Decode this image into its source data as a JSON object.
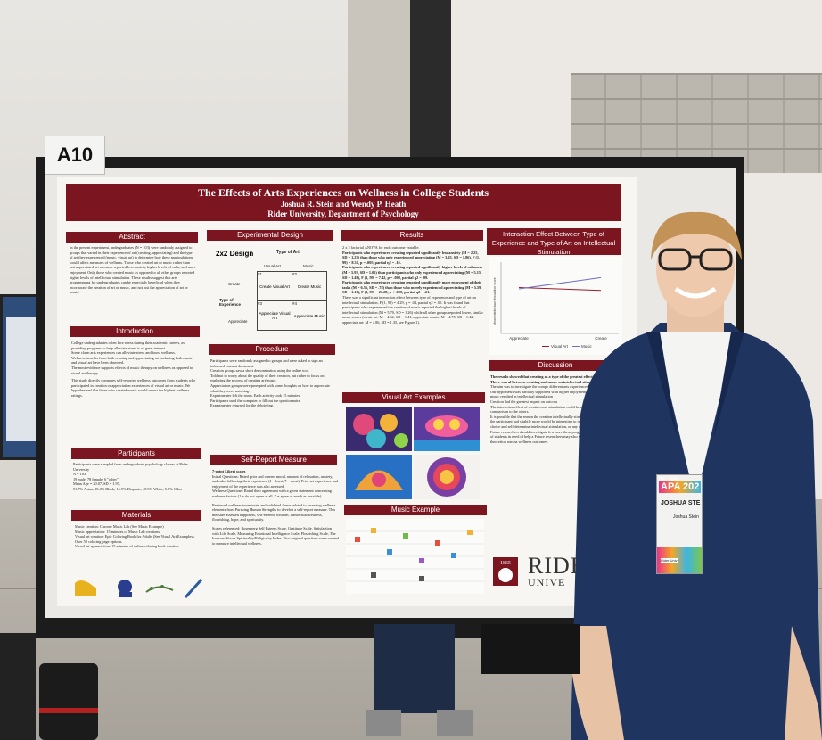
{
  "sign": {
    "label": "A10"
  },
  "poster": {
    "title": "The Effects of Arts Experiences on Wellness in College Students",
    "authors": "Joshua R. Stein and Wendy P. Heath",
    "affiliation": "Rider University, Department of Psychology",
    "abstract": {
      "heading": "Abstract",
      "body": "In the present experiment, undergraduates (N = 103) were randomly assigned to groups that varied in their experience of art (creating, appreciating) and the type of art they experienced (music, visual art) to determine how these manipulations would affect measures of wellness. Those who created art or music rather than just appreciated art or music reported less anxiety, higher levels of calm, and more enjoyment. Only those who created music as opposed to all other groups reported higher levels of intellectual stimulation. These results suggest that arts programming for undergraduates can be especially beneficial when they incorporate the creation of art or music, and not just the appreciation of art or music."
    },
    "introduction": {
      "heading": "Introduction",
      "bullets": [
        "College undergraduates often face stress during their academic careers, as providing programs to help alleviate stress is of great interest.",
        "Some claim arts experiences can alleviate stress and boost wellness.",
        "Wellness benefits from both creating and appreciating art including both music and visual art have been observed.",
        "The most evidence supports effects of music therapy on wellness as opposed to visual art therapy."
      ],
      "closing": "This study directly compares self-reported wellness outcomes from students who participated in creation or appreciation experiences of visual art or music. We hypothesized that those who created music would report the highest wellness ratings."
    },
    "participants": {
      "heading": "Participants",
      "body": "Participants were sampled from undergraduate psychology classes at Rider University",
      "bullets": [
        "N = 103",
        "19 male, 78 female, 6 \"other\"",
        "Mean Age = 20.07, SD = 1.97,",
        "51.7% Asian, 18.4% Black, 16.5% Hispanic, 48.5% White, 5.8% Other"
      ]
    },
    "materials": {
      "heading": "Materials",
      "bullets": [
        "Music creation: Chrome Music Lab (See Music Example)",
        "Music appreciation: 15 minutes of Music Lab creations",
        "Visual art creation: Epic Coloring Book for Adults (See Visual Art Examples). Over 50 coloring page options.",
        "Visual art appreciation: 15 minutes of online coloring book creation"
      ]
    },
    "design": {
      "heading": "Experimental Design",
      "label": "2x2 Design",
      "type_of_art": "Type of Art",
      "col_visual": "Visual Art",
      "col_music": "Music",
      "row_header": "Type of Experience",
      "row_create": "Create",
      "row_appreciate": "Appreciate",
      "cells": [
        {
          "num": "#1",
          "text": "Create Visual Art"
        },
        {
          "num": "#2",
          "text": "Create Music"
        },
        {
          "num": "#3",
          "text": "Appreciate Visual Art"
        },
        {
          "num": "#4",
          "text": "Appreciate Music"
        }
      ]
    },
    "procedure": {
      "heading": "Procedure",
      "intro": "Participants were randomly assigned to groups and were asked to sign an informed consent document.",
      "bullets": [
        "Creation groups saw a short demonstration using the online tool.",
        "Told not to worry about the quality of their creation, but rather to focus on exploring the process of creating art/music.",
        "Appreciation groups were prompted with some thoughts on how to appreciate what they were watching.",
        "Experimenter left the room. Each activity took 15 minutes.",
        "Participants used the computer to fill out the questionnaire.",
        "Experimenter returned for the debriefing."
      ]
    },
    "self_report": {
      "heading": "Self-Report Measure",
      "scale": "7-point Likert scales",
      "items": [
        "Initial Questions: Rated prior and current mood, amount of relaxation, anxiety, and calm following their experience (1 = least, 7 = most). Prior art experience and enjoyment of the experience was also assessed.",
        "Wellness Questions: Rated their agreement with a given statement concerning wellness factors (1 = do not agree at all, 7 = agree as much as possible)."
      ],
      "body": "Reviewed wellness inventories and validated forms related to assessing wellness elements from Pursuing Human Strengths to develop a self-report measure. This measure assessed happiness, self-esteem, wisdom, intellectual wellness, flourishing, hope, and spirituality.",
      "scales": "Scales referenced: Rosenberg Self Esteem Scale, Gratitude Scale, Satisfaction with Life Scale, Measuring Emotional Intelligence Scale, Flourishing Scale, The Ironson-Woods Spirituality/Religiosity Index. Two original questions were created to measure intellectual wellness."
    },
    "results": {
      "heading": "Results",
      "intro": "2 x 2 factorial ANOVA for each outcome variable.",
      "bullets": [
        "Participants who experienced creating reported significantly less anxiety (M = 2.25, SD = 1.23) than those who only experienced appreciating (M = 3.25, SD = 1.86), F (1, 99) = 8.31, p = .005, partial η2 = .16.",
        "Participants who experienced creating reported significantly higher levels of calmness (M = 5.93, SD = 1.06) than participants who only experienced appreciating (M = 5.15, SD = 1.48), F (1, 99) = 7.42, p = .008, partial η2 = .09.",
        "Participants who experienced creating reported significantly more enjoyment of their tasks (M = 6.56, SD = .78) than those who merely experienced appreciating (M = 5.59, SD = 1.10), F (1, 99) = 21.28, p < .000, partial η2 = .21.",
        "There was a significant interaction effect between type of experience and type of art on intellectual stimulation, F (1, 99) = 4.29, p = .04, partial η2 = .05. It was found that participants who experienced the creation of music reported the highest levels of intellectual stimulation (M = 5.70, SD = 1.26) while all other groups reported lower, similar mean scores (create art: M = 4.62, SD = 1.41, appreciate music: M = 4.75, SD = 1.42, appreciate art: M = 4.86, SD = 1.35, see Figure 1)."
      ]
    },
    "visual_art": {
      "heading": "Visual Art Examples"
    },
    "music": {
      "heading": "Music Example"
    },
    "interaction": {
      "heading": "Interaction Effect Between Type of Experience and Type of Art on Intellectual Stimulation"
    },
    "discussion": {
      "heading": "Discussion",
      "lead": "The results showed that creating as a type of the greatest effect on outcomes. There was al between creating and music on intellectual stim",
      "bullets": [
        "The aim was to investigate the compo different arts experiences would have on w",
        "Our hypothesis was partially supported with higher enjoyment, calmness, and low of music resulted in intellectual stimulation",
        "Creation had the greatest impact on outcom",
        "The interaction effect of creation and stimulation could be explained by the comparison to the others.",
        "It is possible that the reason the creation intellectually stimulating task may be where the participant had slightly more would be interesting to investigate in amount of choice and self-determina intellectual stimulation, or any other w",
        "Future researchers should investigate few have these programs to have the wellness of students in need of help a Future researchers may also wish t explore the theoretical mecha wellness outcomes."
      ]
    },
    "logo": {
      "year": "1865",
      "name": "RIDE",
      "sub": "UNIVE"
    }
  },
  "chart_data": {
    "type": "line",
    "title": "Interaction Effect Between Type of Experience and Type of Art on Intellectual Stimulation",
    "xlabel": "",
    "ylabel": "Mean intellectual stimulation score",
    "categories": [
      "Appreciate",
      "Create"
    ],
    "series": [
      {
        "name": "Visual Art",
        "values": [
          4.86,
          4.62
        ],
        "color": "#9b1c2a"
      },
      {
        "name": "Music",
        "values": [
          4.75,
          5.7
        ],
        "color": "#6d6fbf"
      }
    ],
    "ylim": [
      1,
      7
    ],
    "legend": "bottom"
  },
  "badge": {
    "event": "APA 202",
    "banner": "he · him",
    "name": "JOSHUA STE",
    "sub": "Joshua Stein",
    "tag": "Rider Univ"
  },
  "colors": {
    "maroon": "#7b1520",
    "suit": "#1f3560"
  }
}
